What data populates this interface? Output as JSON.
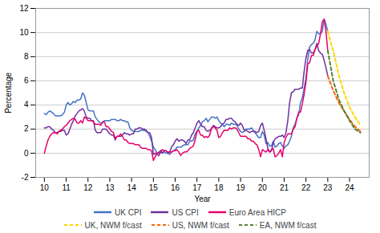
{
  "chart_data": {
    "type": "line",
    "xlabel": "Year",
    "ylabel": "Percentage",
    "xlim": [
      2009.6,
      2024.9
    ],
    "xticks": [
      {
        "value": 2010,
        "label": "10"
      },
      {
        "value": 2011,
        "label": "11"
      },
      {
        "value": 2012,
        "label": "12"
      },
      {
        "value": 2013,
        "label": "13"
      },
      {
        "value": 2014,
        "label": "14"
      },
      {
        "value": 2015,
        "label": "15"
      },
      {
        "value": 2016,
        "label": "16"
      },
      {
        "value": 2017,
        "label": "17"
      },
      {
        "value": 2018,
        "label": "18"
      },
      {
        "value": 2019,
        "label": "19"
      },
      {
        "value": 2020,
        "label": "20"
      },
      {
        "value": 2021,
        "label": "21"
      },
      {
        "value": 2022,
        "label": "22"
      },
      {
        "value": 2023,
        "label": "23"
      },
      {
        "value": 2024,
        "label": "24"
      }
    ],
    "ylim": [
      -2,
      12
    ],
    "yticks": [
      -2,
      0,
      2,
      4,
      6,
      8,
      10,
      12
    ],
    "grid": true,
    "legend": "bottom",
    "series": [
      {
        "name": "UK CPI",
        "color": "#4472c4",
        "line_style": "solid",
        "x": [
          2010.0,
          2010.083,
          2010.167,
          2010.25,
          2010.333,
          2010.417,
          2010.5,
          2010.583,
          2010.667,
          2010.75,
          2010.833,
          2010.917,
          2011.0,
          2011.083,
          2011.167,
          2011.25,
          2011.333,
          2011.417,
          2011.5,
          2011.583,
          2011.667,
          2011.75,
          2011.833,
          2011.917,
          2012.0,
          2012.083,
          2012.167,
          2012.25,
          2012.333,
          2012.417,
          2012.5,
          2012.583,
          2012.667,
          2012.75,
          2012.833,
          2012.917,
          2013.0,
          2013.083,
          2013.167,
          2013.25,
          2013.333,
          2013.417,
          2013.5,
          2013.583,
          2013.667,
          2013.75,
          2013.833,
          2013.917,
          2014.0,
          2014.083,
          2014.167,
          2014.25,
          2014.333,
          2014.417,
          2014.5,
          2014.583,
          2014.667,
          2014.75,
          2014.833,
          2014.917,
          2015.0,
          2015.083,
          2015.167,
          2015.25,
          2015.333,
          2015.417,
          2015.5,
          2015.583,
          2015.667,
          2015.75,
          2015.833,
          2015.917,
          2016.0,
          2016.083,
          2016.167,
          2016.25,
          2016.333,
          2016.417,
          2016.5,
          2016.583,
          2016.667,
          2016.75,
          2016.833,
          2016.917,
          2017.0,
          2017.083,
          2017.167,
          2017.25,
          2017.333,
          2017.417,
          2017.5,
          2017.583,
          2017.667,
          2017.75,
          2017.833,
          2017.917,
          2018.0,
          2018.083,
          2018.167,
          2018.25,
          2018.333,
          2018.417,
          2018.5,
          2018.583,
          2018.667,
          2018.75,
          2018.833,
          2018.917,
          2019.0,
          2019.083,
          2019.167,
          2019.25,
          2019.333,
          2019.417,
          2019.5,
          2019.583,
          2019.667,
          2019.75,
          2019.833,
          2019.917,
          2020.0,
          2020.083,
          2020.167,
          2020.25,
          2020.333,
          2020.417,
          2020.5,
          2020.583,
          2020.667,
          2020.75,
          2020.833,
          2020.917,
          2021.0,
          2021.083,
          2021.167,
          2021.25,
          2021.333,
          2021.417,
          2021.5,
          2021.583,
          2021.667,
          2021.75,
          2021.833,
          2021.917,
          2022.0,
          2022.083,
          2022.167,
          2022.25,
          2022.333,
          2022.417,
          2022.5,
          2022.583,
          2022.667,
          2022.75,
          2022.833,
          2022.917,
          2023.0
        ],
        "values": [
          3.3,
          3.2,
          3.4,
          3.5,
          3.4,
          3.3,
          3.1,
          3.1,
          3.1,
          3.1,
          3.2,
          3.4,
          4.0,
          4.2,
          4.0,
          4.1,
          4.3,
          4.2,
          4.4,
          4.4,
          4.5,
          5.0,
          4.8,
          4.2,
          3.6,
          3.5,
          3.5,
          3.5,
          3.0,
          2.8,
          2.6,
          2.5,
          2.5,
          2.7,
          2.7,
          2.7,
          2.7,
          2.8,
          2.8,
          2.8,
          2.7,
          2.7,
          2.8,
          2.7,
          2.7,
          2.6,
          2.6,
          2.1,
          1.9,
          1.8,
          1.8,
          1.8,
          1.8,
          1.9,
          1.9,
          1.9,
          1.8,
          1.7,
          1.4,
          1.0,
          0.5,
          0.3,
          0.0,
          0.1,
          0.2,
          0.1,
          0.1,
          0.0,
          0.0,
          -0.1,
          0.1,
          0.2,
          0.3,
          0.5,
          0.5,
          0.5,
          0.6,
          0.7,
          0.7,
          0.7,
          1.0,
          1.0,
          1.1,
          1.6,
          1.8,
          2.1,
          2.3,
          2.6,
          2.7,
          2.9,
          2.6,
          2.8,
          3.0,
          3.0,
          2.9,
          3.0,
          2.7,
          2.5,
          2.4,
          2.2,
          2.4,
          2.4,
          2.3,
          2.5,
          2.4,
          2.4,
          2.3,
          2.0,
          1.8,
          1.7,
          1.8,
          2.0,
          2.0,
          2.0,
          2.1,
          1.9,
          1.7,
          1.5,
          1.3,
          1.3,
          1.8,
          1.5,
          0.8,
          0.9,
          0.6,
          0.6,
          1.0,
          0.5,
          0.6,
          0.8,
          0.9,
          0.6,
          0.4,
          0.6,
          0.7,
          1.0,
          1.4,
          2.1,
          2.4,
          2.9,
          3.2,
          4.2,
          4.6,
          5.4,
          6.2,
          7.8,
          8.8,
          9.0,
          9.1,
          9.4,
          10.1,
          9.9,
          9.9,
          10.1,
          11.1,
          10.7,
          10.1
        ]
      },
      {
        "name": "US CPI",
        "color": "#7030a0",
        "line_style": "solid",
        "x": [
          2010.0,
          2010.083,
          2010.167,
          2010.25,
          2010.333,
          2010.417,
          2010.5,
          2010.583,
          2010.667,
          2010.75,
          2010.833,
          2010.917,
          2011.0,
          2011.083,
          2011.167,
          2011.25,
          2011.333,
          2011.417,
          2011.5,
          2011.583,
          2011.667,
          2011.75,
          2011.833,
          2011.917,
          2012.0,
          2012.083,
          2012.167,
          2012.25,
          2012.333,
          2012.417,
          2012.5,
          2012.583,
          2012.667,
          2012.75,
          2012.833,
          2012.917,
          2013.0,
          2013.083,
          2013.167,
          2013.25,
          2013.333,
          2013.417,
          2013.5,
          2013.583,
          2013.667,
          2013.75,
          2013.833,
          2013.917,
          2014.0,
          2014.083,
          2014.167,
          2014.25,
          2014.333,
          2014.417,
          2014.5,
          2014.583,
          2014.667,
          2014.75,
          2014.833,
          2014.917,
          2015.0,
          2015.083,
          2015.167,
          2015.25,
          2015.333,
          2015.417,
          2015.5,
          2015.583,
          2015.667,
          2015.75,
          2015.833,
          2015.917,
          2016.0,
          2016.083,
          2016.167,
          2016.25,
          2016.333,
          2016.417,
          2016.5,
          2016.583,
          2016.667,
          2016.75,
          2016.833,
          2016.917,
          2017.0,
          2017.083,
          2017.167,
          2017.25,
          2017.333,
          2017.417,
          2017.5,
          2017.583,
          2017.667,
          2017.75,
          2017.833,
          2017.917,
          2018.0,
          2018.083,
          2018.167,
          2018.25,
          2018.333,
          2018.417,
          2018.5,
          2018.583,
          2018.667,
          2018.75,
          2018.833,
          2018.917,
          2019.0,
          2019.083,
          2019.167,
          2019.25,
          2019.333,
          2019.417,
          2019.5,
          2019.583,
          2019.667,
          2019.75,
          2019.833,
          2019.917,
          2020.0,
          2020.083,
          2020.167,
          2020.25,
          2020.333,
          2020.417,
          2020.5,
          2020.583,
          2020.667,
          2020.75,
          2020.833,
          2020.917,
          2021.0,
          2021.083,
          2021.167,
          2021.25,
          2021.333,
          2021.417,
          2021.5,
          2021.583,
          2021.667,
          2021.75,
          2021.833,
          2021.917,
          2022.0,
          2022.083,
          2022.167,
          2022.25,
          2022.333,
          2022.417,
          2022.5,
          2022.583,
          2022.667,
          2022.75,
          2022.833,
          2022.917,
          2023.0
        ],
        "values": [
          2.1,
          2.1,
          2.2,
          2.2,
          2.0,
          1.9,
          1.7,
          1.7,
          1.8,
          1.8,
          1.9,
          1.9,
          1.5,
          1.6,
          2.0,
          2.4,
          2.7,
          3.1,
          3.3,
          3.5,
          3.6,
          3.7,
          3.5,
          3.0,
          2.9,
          2.9,
          2.7,
          2.7,
          1.9,
          1.7,
          1.7,
          1.7,
          2.0,
          2.0,
          2.0,
          1.8,
          1.6,
          1.5,
          1.5,
          1.1,
          1.4,
          1.4,
          1.4,
          1.5,
          1.7,
          1.6,
          1.6,
          1.5,
          1.6,
          1.6,
          2.0,
          2.0,
          2.1,
          2.1,
          2.0,
          2.0,
          1.9,
          1.7,
          1.7,
          1.3,
          -0.1,
          0.0,
          -0.1,
          -0.2,
          0.1,
          0.0,
          0.2,
          0.2,
          0.0,
          0.1,
          0.5,
          0.7,
          1.0,
          1.2,
          1.0,
          1.1,
          1.1,
          1.0,
          0.8,
          1.1,
          1.1,
          1.5,
          1.7,
          2.1,
          2.5,
          2.7,
          2.4,
          2.2,
          2.2,
          1.9,
          1.8,
          1.9,
          2.0,
          2.3,
          2.2,
          2.1,
          2.1,
          2.2,
          2.4,
          2.5,
          2.8,
          2.8,
          2.9,
          2.9,
          2.7,
          2.6,
          2.4,
          2.3,
          2.5,
          2.3,
          1.9,
          1.9,
          1.8,
          1.7,
          1.8,
          1.8,
          1.8,
          1.7,
          1.8,
          2.3,
          2.5,
          1.9,
          1.2,
          0.4,
          0.1,
          0.2,
          0.9,
          1.2,
          1.3,
          1.4,
          1.4,
          1.5,
          1.3,
          1.7,
          2.7,
          4.2,
          5.0,
          5.1,
          5.3,
          5.3,
          5.3,
          5.4,
          5.4,
          6.8,
          7.9,
          8.5,
          8.6,
          8.3,
          8.3,
          8.6,
          9.1,
          8.5,
          8.3,
          8.2,
          7.7,
          7.1,
          6.4
        ]
      },
      {
        "name": "Euro Area HICP",
        "color": "#e8006a",
        "line_style": "solid",
        "x": [
          2010.0,
          2010.083,
          2010.167,
          2010.25,
          2010.333,
          2010.417,
          2010.5,
          2010.583,
          2010.667,
          2010.75,
          2010.833,
          2010.917,
          2011.0,
          2011.083,
          2011.167,
          2011.25,
          2011.333,
          2011.417,
          2011.5,
          2011.583,
          2011.667,
          2011.75,
          2011.833,
          2011.917,
          2012.0,
          2012.083,
          2012.167,
          2012.25,
          2012.333,
          2012.417,
          2012.5,
          2012.583,
          2012.667,
          2012.75,
          2012.833,
          2012.917,
          2013.0,
          2013.083,
          2013.167,
          2013.25,
          2013.333,
          2013.417,
          2013.5,
          2013.583,
          2013.667,
          2013.75,
          2013.833,
          2013.917,
          2014.0,
          2014.083,
          2014.167,
          2014.25,
          2014.333,
          2014.417,
          2014.5,
          2014.583,
          2014.667,
          2014.75,
          2014.833,
          2014.917,
          2015.0,
          2015.083,
          2015.167,
          2015.25,
          2015.333,
          2015.417,
          2015.5,
          2015.583,
          2015.667,
          2015.75,
          2015.833,
          2015.917,
          2016.0,
          2016.083,
          2016.167,
          2016.25,
          2016.333,
          2016.417,
          2016.5,
          2016.583,
          2016.667,
          2016.75,
          2016.833,
          2016.917,
          2017.0,
          2017.083,
          2017.167,
          2017.25,
          2017.333,
          2017.417,
          2017.5,
          2017.583,
          2017.667,
          2017.75,
          2017.833,
          2017.917,
          2018.0,
          2018.083,
          2018.167,
          2018.25,
          2018.333,
          2018.417,
          2018.5,
          2018.583,
          2018.667,
          2018.75,
          2018.833,
          2018.917,
          2019.0,
          2019.083,
          2019.167,
          2019.25,
          2019.333,
          2019.417,
          2019.5,
          2019.583,
          2019.667,
          2019.75,
          2019.833,
          2019.917,
          2020.0,
          2020.083,
          2020.167,
          2020.25,
          2020.333,
          2020.417,
          2020.5,
          2020.583,
          2020.667,
          2020.75,
          2020.833,
          2020.917,
          2021.0,
          2021.083,
          2021.167,
          2021.25,
          2021.333,
          2021.417,
          2021.5,
          2021.583,
          2021.667,
          2021.75,
          2021.833,
          2021.917,
          2022.0,
          2022.083,
          2022.167,
          2022.25,
          2022.333,
          2022.417,
          2022.5,
          2022.583,
          2022.667,
          2022.75,
          2022.833,
          2022.917,
          2023.0
        ],
        "values": [
          0.0,
          0.6,
          1.1,
          1.4,
          1.6,
          1.7,
          1.7,
          1.6,
          1.8,
          1.9,
          2.0,
          2.2,
          2.3,
          2.5,
          2.7,
          2.8,
          2.9,
          2.8,
          2.5,
          2.5,
          2.7,
          2.5,
          3.0,
          2.9,
          2.7,
          2.7,
          2.7,
          2.6,
          2.4,
          2.4,
          2.4,
          2.3,
          2.6,
          2.6,
          2.2,
          2.2,
          2.0,
          1.8,
          1.7,
          1.2,
          1.4,
          1.4,
          1.6,
          1.4,
          1.1,
          1.1,
          0.9,
          0.8,
          0.8,
          0.8,
          0.7,
          0.7,
          0.7,
          0.5,
          0.4,
          0.4,
          0.4,
          0.3,
          0.3,
          0.2,
          -0.6,
          -0.3,
          0.0,
          0.0,
          0.2,
          0.3,
          0.2,
          0.2,
          0.1,
          0.1,
          0.1,
          0.2,
          0.2,
          0.3,
          0.1,
          -0.2,
          0.0,
          0.1,
          0.1,
          0.2,
          0.4,
          0.5,
          0.6,
          1.1,
          1.8,
          1.9,
          1.5,
          1.5,
          1.3,
          1.4,
          1.3,
          1.5,
          2.1,
          2.2,
          2.1,
          1.9,
          1.3,
          1.4,
          1.7,
          1.9,
          1.9,
          1.9,
          2.1,
          2.0,
          2.1,
          2.1,
          2.0,
          1.7,
          1.4,
          1.4,
          1.4,
          1.4,
          1.2,
          1.2,
          1.0,
          1.0,
          0.8,
          0.7,
          0.3,
          -0.3,
          0.3,
          0.2,
          0.1,
          0.3,
          0.1,
          0.3,
          0.4,
          -0.3,
          -0.2,
          0.0,
          0.3,
          -0.3,
          0.9,
          1.3,
          1.6,
          1.6,
          1.6,
          2.0,
          2.2,
          2.9,
          3.4,
          3.4,
          4.1,
          4.9,
          5.9,
          7.4,
          7.5,
          8.1,
          8.1,
          8.6,
          8.9,
          9.1,
          9.9,
          10.9,
          11.1,
          10.1,
          8.5
        ]
      },
      {
        "name": "UK, NWM f/cast",
        "color": "#ffd700",
        "line_style": "dashed",
        "x": [
          2023.0,
          2023.25,
          2023.5,
          2023.75,
          2024.0,
          2024.25,
          2024.5
        ],
        "values": [
          10.1,
          8.5,
          6.5,
          5.0,
          3.8,
          3.0,
          2.3
        ]
      },
      {
        "name": "US, NWM f/cast",
        "color": "#ff6600",
        "line_style": "dashed",
        "x": [
          2023.0,
          2023.25,
          2023.5,
          2023.75,
          2024.0,
          2024.25,
          2024.5
        ],
        "values": [
          6.4,
          5.2,
          4.2,
          3.5,
          2.8,
          2.2,
          1.8
        ]
      },
      {
        "name": "EA, NWM f/cast",
        "color": "#548235",
        "line_style": "dashed",
        "x": [
          2023.0,
          2023.25,
          2023.5,
          2023.75,
          2024.0,
          2024.25,
          2024.5
        ],
        "values": [
          8.5,
          6.0,
          4.5,
          3.5,
          2.7,
          2.0,
          1.7
        ]
      }
    ]
  }
}
